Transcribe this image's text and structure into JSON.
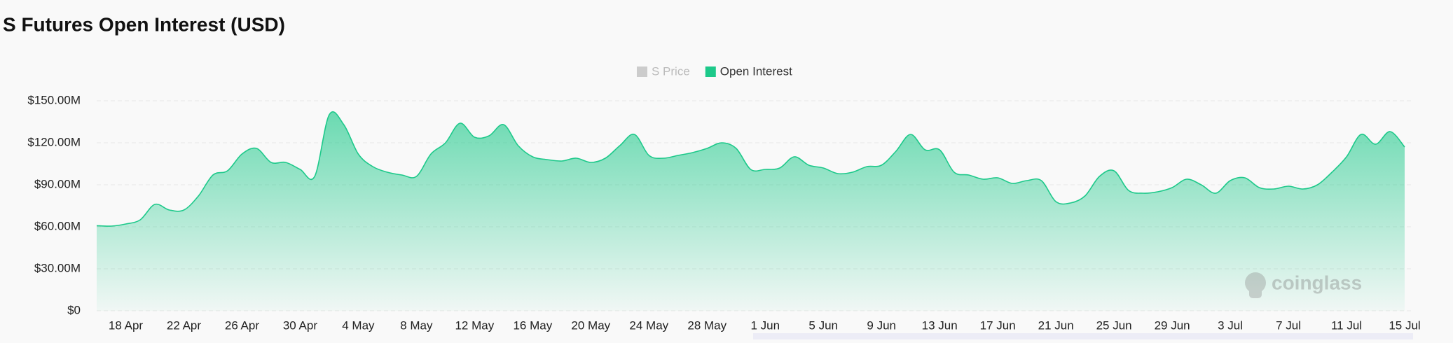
{
  "chart_data": {
    "type": "area",
    "title": "S Futures Open Interest (USD)",
    "categories": [
      null,
      null,
      "18 Apr",
      null,
      null,
      null,
      "22 Apr",
      null,
      null,
      null,
      "26 Apr",
      null,
      null,
      null,
      "30 Apr",
      null,
      null,
      null,
      "4 May",
      null,
      null,
      null,
      "8 May",
      null,
      null,
      null,
      "12 May",
      null,
      null,
      null,
      "16 May",
      null,
      null,
      null,
      "20 May",
      null,
      null,
      null,
      "24 May",
      null,
      null,
      null,
      "28 May",
      null,
      null,
      null,
      "1 Jun",
      null,
      null,
      null,
      "5 Jun",
      null,
      null,
      null,
      "9 Jun",
      null,
      null,
      null,
      "13 Jun",
      null,
      null,
      null,
      "17 Jun",
      null,
      null,
      null,
      "21 Jun",
      null,
      null,
      null,
      "25 Jun",
      null,
      null,
      null,
      "29 Jun",
      null,
      null,
      null,
      "3 Jul",
      null,
      null,
      null,
      "7 Jul",
      null,
      null,
      null,
      "11 Jul",
      null,
      null,
      null,
      "15 Jul"
    ],
    "series": [
      {
        "name": "Open Interest",
        "color": "#1dc98a",
        "values": [
          60.8,
          60.5,
          62,
          65,
          76,
          72,
          72,
          82,
          97,
          100,
          112,
          116,
          106,
          106,
          101,
          96,
          140,
          133,
          112,
          103,
          99,
          97,
          96,
          112,
          120,
          134,
          124,
          125,
          133,
          118,
          110,
          108,
          107,
          109,
          106,
          109,
          118,
          126,
          111,
          109,
          111,
          113,
          116,
          120,
          116,
          101,
          101,
          102,
          110,
          104,
          102,
          98,
          99,
          103,
          104,
          114,
          126,
          115,
          115,
          99,
          97,
          94,
          95,
          91,
          93,
          93,
          78,
          77,
          82,
          96,
          100,
          86,
          84,
          85,
          88,
          94,
          90,
          84,
          93,
          95,
          88,
          87,
          89,
          87,
          90,
          99,
          110,
          126,
          119,
          128,
          117
        ]
      }
    ],
    "hidden_series": [
      {
        "name": "S Price",
        "color": "#cccccc"
      }
    ],
    "ylim": [
      0,
      150
    ],
    "yticks": [
      {
        "value": 0,
        "label": "$0"
      },
      {
        "value": 30,
        "label": "$30.00M"
      },
      {
        "value": 60,
        "label": "$60.00M"
      },
      {
        "value": 90,
        "label": "$90.00M"
      },
      {
        "value": 120,
        "label": "$120.00M"
      },
      {
        "value": 150,
        "label": "$150.00M"
      }
    ],
    "grid": true,
    "watermark": "coinglass"
  }
}
